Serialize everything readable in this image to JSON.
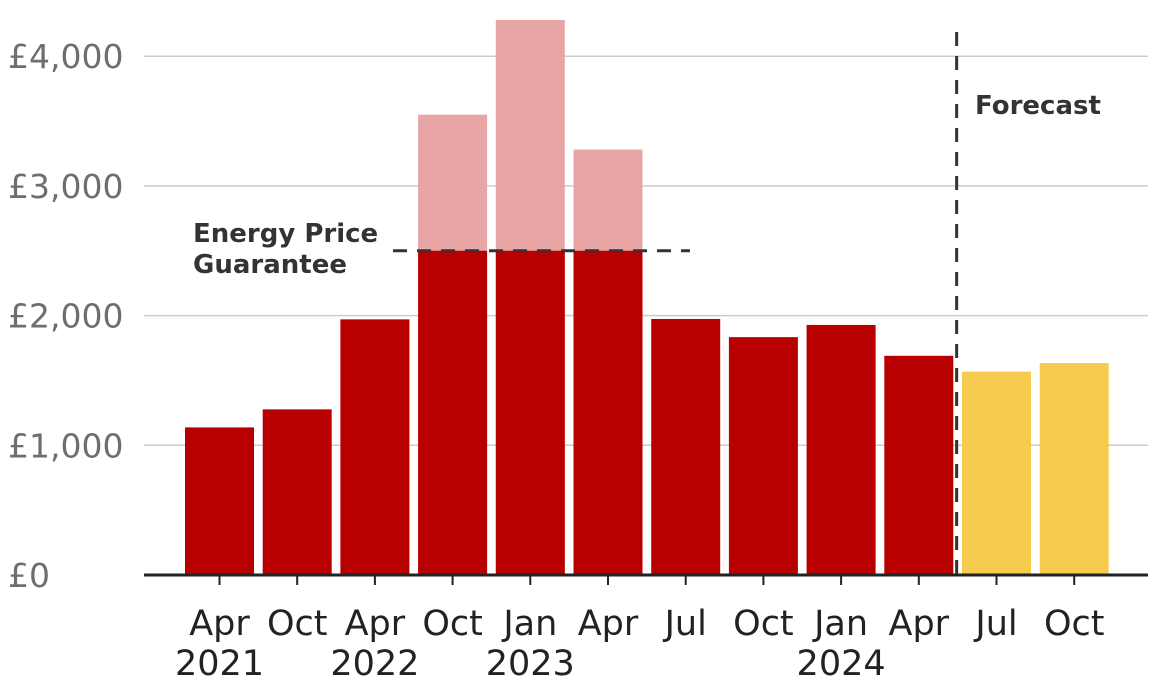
{
  "chart_data": {
    "type": "bar",
    "title": "",
    "xlabel": "",
    "ylabel": "",
    "ylim": [
      0,
      4300
    ],
    "yticks": [
      {
        "value": 0,
        "label": "£0"
      },
      {
        "value": 1000,
        "label": "£1,000"
      },
      {
        "value": 2000,
        "label": "£2,000"
      },
      {
        "value": 3000,
        "label": "£3,000"
      },
      {
        "value": 4000,
        "label": "£4,000"
      }
    ],
    "grid": true,
    "categories": [
      "Apr 2021",
      "Oct 2021",
      "Apr 2022",
      "Oct 2022",
      "Jan 2023",
      "Apr 2023",
      "Jul 2023",
      "Oct 2023",
      "Jan 2024",
      "Apr 2024",
      "Jul 2024",
      "Oct 2024"
    ],
    "month_labels": [
      "Apr",
      "Oct",
      "Apr",
      "Oct",
      "Jan",
      "Apr",
      "Jul",
      "Oct",
      "Jan",
      "Apr",
      "Jul",
      "Oct"
    ],
    "year_labels": [
      {
        "label": "2021",
        "at_index": 0
      },
      {
        "label": "2022",
        "at_index": 2
      },
      {
        "label": "2023",
        "at_index": 4
      },
      {
        "label": "2024",
        "at_index": 8
      }
    ],
    "series": [
      {
        "values": [
          1138,
          1277,
          1971,
          2500,
          2500,
          2500,
          1974,
          1834,
          1928,
          1690,
          null,
          null
        ],
        "color": "#b80000"
      },
      {
        "values": [
          null,
          null,
          null,
          3549,
          4279,
          3280,
          null,
          null,
          null,
          null,
          null,
          null
        ],
        "color": "#e8a5a5"
      },
      {
        "values": [
          null,
          null,
          null,
          null,
          null,
          null,
          null,
          null,
          null,
          null,
          1568,
          1634
        ],
        "color": "#f7cb4d"
      }
    ],
    "reference_line": {
      "value": 2500,
      "label_lines": [
        "Energy Price",
        "Guarantee"
      ]
    },
    "forecast_divider": {
      "after_index": 9,
      "label": "Forecast"
    }
  }
}
